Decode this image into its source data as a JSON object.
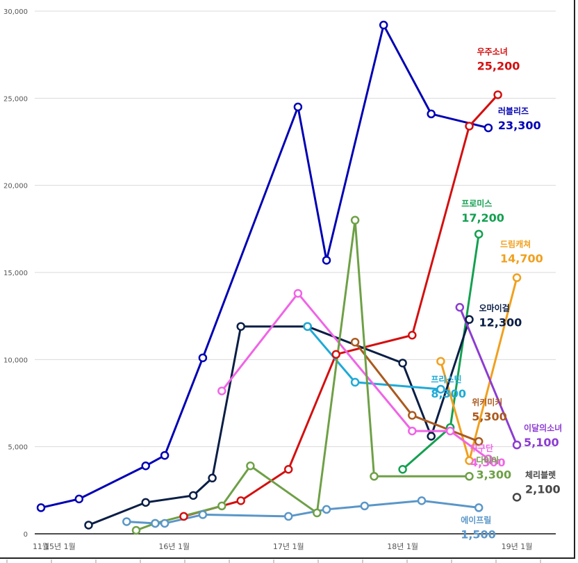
{
  "chart_data": {
    "type": "line",
    "title": "",
    "xlabel": "",
    "ylabel": "",
    "ylim": [
      0,
      30000
    ],
    "yticks": [
      0,
      5000,
      10000,
      15000,
      20000,
      25000,
      30000
    ],
    "ytick_labels": [
      "0",
      "5,000",
      "10,000",
      "15,000",
      "20,000",
      "25,000",
      "30,000"
    ],
    "x_unit": "months since 2014-11",
    "xlim": [
      0,
      54
    ],
    "xticks": [
      0,
      2,
      14,
      26,
      38,
      50
    ],
    "xtick_labels": [
      "11월",
      "15년 1월",
      "16년 1월",
      "17년 1월",
      "18년 1월",
      "19년 1월"
    ],
    "grid": true,
    "legend": "inline end labels",
    "series": [
      {
        "name": "러블리즈",
        "color": "#0000b4",
        "label_value": "23,300",
        "points": [
          [
            0,
            1500
          ],
          [
            4,
            2000
          ],
          [
            11,
            3900
          ],
          [
            13,
            4500
          ],
          [
            17,
            10100
          ],
          [
            27,
            24500
          ],
          [
            30,
            15700
          ],
          [
            36,
            29200
          ],
          [
            41,
            24100
          ],
          [
            47,
            23300
          ]
        ]
      },
      {
        "name": "우주소녀",
        "color": "#d40f0f",
        "label_value": "25,200",
        "points": [
          [
            15,
            1000
          ],
          [
            21,
            1900
          ],
          [
            26,
            3700
          ],
          [
            31,
            10300
          ],
          [
            39,
            11400
          ],
          [
            45,
            23400
          ],
          [
            48,
            25200
          ]
        ]
      },
      {
        "name": "프로미스",
        "color": "#14a050",
        "label_value": "17,200",
        "points": [
          [
            38,
            3700
          ],
          [
            43,
            6100
          ],
          [
            46,
            17200
          ]
        ]
      },
      {
        "name": "드림캐쳐",
        "color": "#f0a01e",
        "label_value": "14,700",
        "points": [
          [
            42,
            9900
          ],
          [
            45,
            4200
          ],
          [
            50,
            14700
          ]
        ]
      },
      {
        "name": "오마이걸",
        "color": "#0a1e46",
        "label_value": "12,300",
        "points": [
          [
            5,
            500
          ],
          [
            11,
            1800
          ],
          [
            16,
            2200
          ],
          [
            18,
            3200
          ],
          [
            21,
            11900
          ],
          [
            28,
            11900
          ],
          [
            38,
            9800
          ],
          [
            41,
            5600
          ],
          [
            45,
            12300
          ]
        ]
      },
      {
        "name": "프리스틴",
        "color": "#1eaad7",
        "label_value": "8,300",
        "points": [
          [
            28,
            11900
          ],
          [
            33,
            8700
          ],
          [
            42,
            8300
          ]
        ]
      },
      {
        "name": "위키미키",
        "color": "#aa5a1e",
        "label_value": "5,300",
        "points": [
          [
            33,
            11000
          ],
          [
            39,
            6800
          ],
          [
            46,
            5300
          ]
        ]
      },
      {
        "name": "이달의소녀",
        "color": "#8c3cd2",
        "label_value": "5,100",
        "points": [
          [
            44,
            13000
          ],
          [
            50,
            5100
          ]
        ]
      },
      {
        "name": "구구단",
        "color": "#f064e6",
        "label_value": "4,300",
        "points": [
          [
            19,
            8200
          ],
          [
            27,
            13800
          ],
          [
            39,
            5900
          ],
          [
            43,
            5900
          ],
          [
            47,
            4300
          ]
        ]
      },
      {
        "name": "다이아",
        "color": "#6ea046",
        "label_value": "3,300",
        "points": [
          [
            10,
            200
          ],
          [
            12,
            600
          ],
          [
            19,
            1600
          ],
          [
            22,
            3900
          ],
          [
            29,
            1200
          ],
          [
            33,
            18000
          ],
          [
            35,
            3300
          ],
          [
            45,
            3300
          ]
        ]
      },
      {
        "name": "체리블렛",
        "color": "#464646",
        "label_value": "2,100",
        "points": [
          [
            50,
            2100
          ]
        ]
      },
      {
        "name": "에이프릴",
        "color": "#5a96c8",
        "label_value": "1,500",
        "points": [
          [
            9,
            700
          ],
          [
            12,
            600
          ],
          [
            13,
            600
          ],
          [
            17,
            1100
          ],
          [
            26,
            1000
          ],
          [
            30,
            1400
          ],
          [
            34,
            1600
          ],
          [
            40,
            1900
          ],
          [
            46,
            1500
          ]
        ]
      }
    ]
  }
}
